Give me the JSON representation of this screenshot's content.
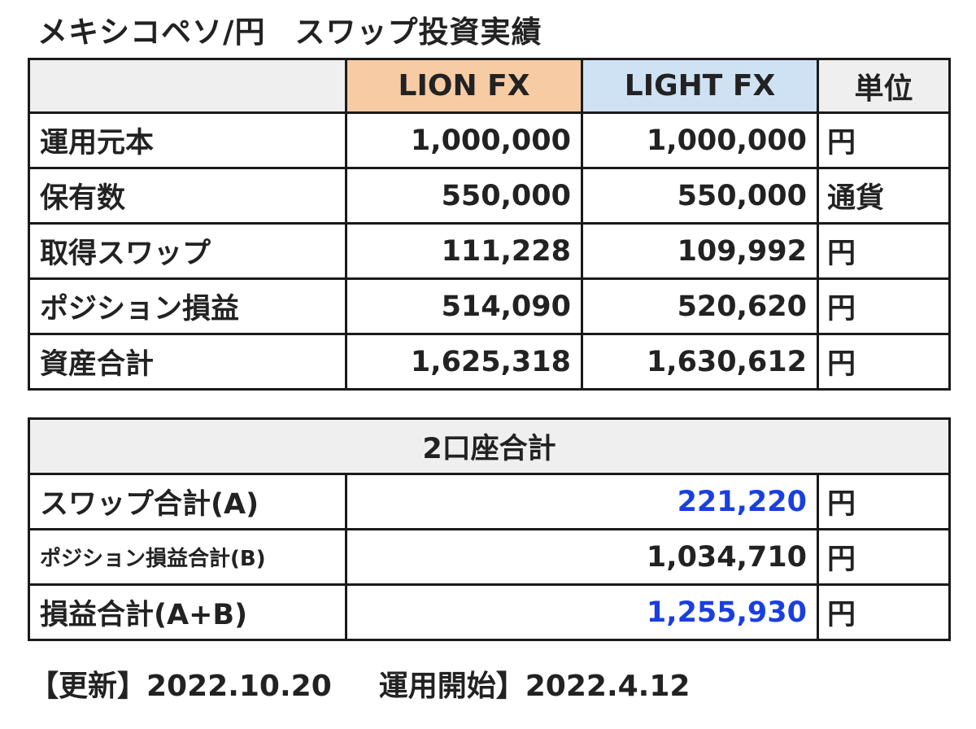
{
  "title": {
    "pair": "メキシコペソ/円",
    "subtitle": "スワップ投資実績"
  },
  "results": {
    "headers": {
      "corner": "",
      "lion": "LION FX",
      "light": "LIGHT FX",
      "unit": "単位"
    },
    "rows": [
      {
        "label": "運用元本",
        "lion": "1,000,000",
        "light": "1,000,000",
        "unit": "円"
      },
      {
        "label": "保有数",
        "lion": "550,000",
        "light": "550,000",
        "unit": "通貨"
      },
      {
        "label": "取得スワップ",
        "lion": "111,228",
        "light": "109,992",
        "unit": "円"
      },
      {
        "label": "ポジション損益",
        "lion": "514,090",
        "light": "520,620",
        "unit": "円"
      },
      {
        "label": "資産合計",
        "lion": "1,625,318",
        "light": "1,630,612",
        "unit": "円"
      }
    ]
  },
  "summary": {
    "header": "2口座合計",
    "rows": [
      {
        "label": "スワップ合計(A)",
        "value": "221,220",
        "unit": "円"
      },
      {
        "label": "ポジション損益合計(B)",
        "value": "1,034,710",
        "unit": "円"
      },
      {
        "label": "損益合計(A+B)",
        "value": "1,255,930",
        "unit": "円"
      }
    ]
  },
  "footer": {
    "updated": "【更新】2022.10.20",
    "started": "運用開始】2022.4.12"
  },
  "colors": {
    "lion_header_bg": "#f7cba4",
    "light_header_bg": "#cfe2f3",
    "header_gray_bg": "#efefef",
    "highlight_blue": "#1a3fe0"
  }
}
